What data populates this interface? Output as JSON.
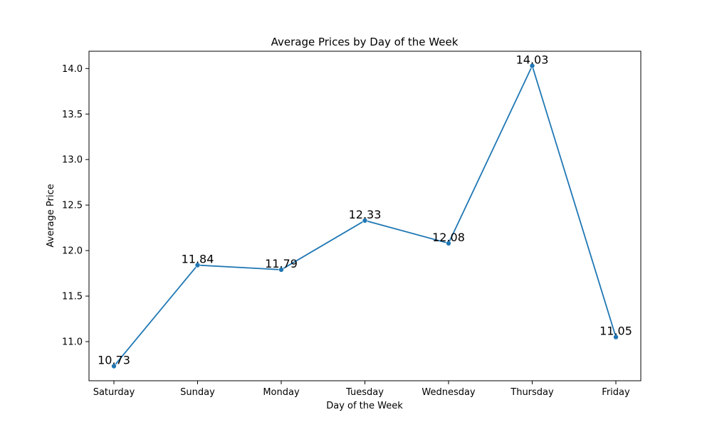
{
  "chart_data": {
    "type": "line",
    "title": "Average Prices by Day of the Week",
    "xlabel": "Day of the Week",
    "ylabel": "Average Price",
    "categories": [
      "Saturday",
      "Sunday",
      "Monday",
      "Tuesday",
      "Wednesday",
      "Thursday",
      "Friday"
    ],
    "values": [
      10.73,
      11.84,
      11.79,
      12.33,
      12.08,
      14.03,
      11.05
    ],
    "data_labels": [
      "10.73",
      "11.84",
      "11.79",
      "12.33",
      "12.08",
      "14.03",
      "11.05"
    ],
    "yticks": [
      11.0,
      11.5,
      12.0,
      12.5,
      13.0,
      13.5,
      14.0
    ],
    "ytick_labels": [
      "11.0",
      "11.5",
      "12.0",
      "12.5",
      "13.0",
      "13.5",
      "14.0"
    ],
    "ylim": [
      10.57,
      14.19
    ],
    "grid": false,
    "line_color": "#1f77b4"
  }
}
